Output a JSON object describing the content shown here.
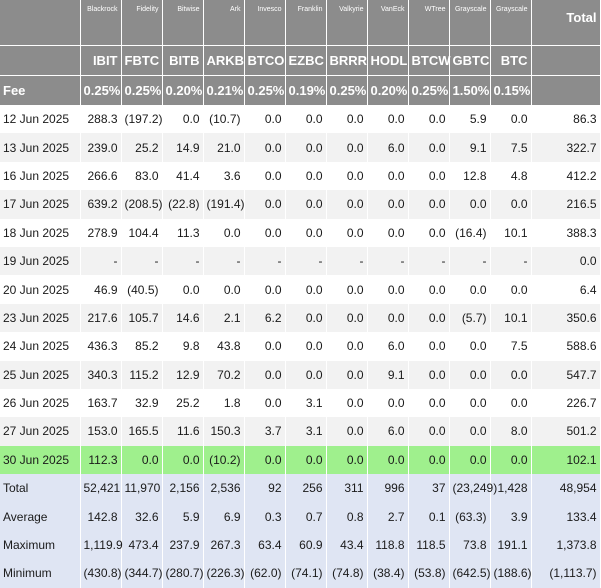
{
  "header": {
    "total_label": "Total",
    "fee_label": "Fee"
  },
  "funds": [
    {
      "issuer": "Blackrock",
      "ticker": "IBIT",
      "fee": "0.25%"
    },
    {
      "issuer": "Fidelity",
      "ticker": "FBTC",
      "fee": "0.25%"
    },
    {
      "issuer": "Bitwise",
      "ticker": "BITB",
      "fee": "0.20%"
    },
    {
      "issuer": "Ark",
      "ticker": "ARKB",
      "fee": "0.21%"
    },
    {
      "issuer": "Invesco",
      "ticker": "BTCO",
      "fee": "0.25%"
    },
    {
      "issuer": "Franklin",
      "ticker": "EZBC",
      "fee": "0.19%"
    },
    {
      "issuer": "Valkyrie",
      "ticker": "BRRR",
      "fee": "0.25%"
    },
    {
      "issuer": "VanEck",
      "ticker": "HODL",
      "fee": "0.20%"
    },
    {
      "issuer": "WTree",
      "ticker": "BTCW",
      "fee": "0.25%"
    },
    {
      "issuer": "Grayscale",
      "ticker": "GBTC",
      "fee": "1.50%"
    },
    {
      "issuer": "Grayscale",
      "ticker": "BTC",
      "fee": "0.15%"
    }
  ],
  "rows": [
    {
      "date": "12 Jun 2025",
      "values": [
        "288.3",
        "(197.2)",
        "0.0",
        "(10.7)",
        "0.0",
        "0.0",
        "0.0",
        "0.0",
        "0.0",
        "5.9",
        "0.0"
      ],
      "total": "86.3"
    },
    {
      "date": "13 Jun 2025",
      "values": [
        "239.0",
        "25.2",
        "14.9",
        "21.0",
        "0.0",
        "0.0",
        "0.0",
        "6.0",
        "0.0",
        "9.1",
        "7.5"
      ],
      "total": "322.7"
    },
    {
      "date": "16 Jun 2025",
      "values": [
        "266.6",
        "83.0",
        "41.4",
        "3.6",
        "0.0",
        "0.0",
        "0.0",
        "0.0",
        "0.0",
        "12.8",
        "4.8"
      ],
      "total": "412.2"
    },
    {
      "date": "17 Jun 2025",
      "values": [
        "639.2",
        "(208.5)",
        "(22.8)",
        "(191.4)",
        "0.0",
        "0.0",
        "0.0",
        "0.0",
        "0.0",
        "0.0",
        "0.0"
      ],
      "total": "216.5"
    },
    {
      "date": "18 Jun 2025",
      "values": [
        "278.9",
        "104.4",
        "11.3",
        "0.0",
        "0.0",
        "0.0",
        "0.0",
        "0.0",
        "0.0",
        "(16.4)",
        "10.1"
      ],
      "total": "388.3"
    },
    {
      "date": "19 Jun 2025",
      "values": [
        "-",
        "-",
        "-",
        "-",
        "-",
        "-",
        "-",
        "-",
        "-",
        "-",
        "-"
      ],
      "total": "0.0"
    },
    {
      "date": "20 Jun 2025",
      "values": [
        "46.9",
        "(40.5)",
        "0.0",
        "0.0",
        "0.0",
        "0.0",
        "0.0",
        "0.0",
        "0.0",
        "0.0",
        "0.0"
      ],
      "total": "6.4"
    },
    {
      "date": "23 Jun 2025",
      "values": [
        "217.6",
        "105.7",
        "14.6",
        "2.1",
        "6.2",
        "0.0",
        "0.0",
        "0.0",
        "0.0",
        "(5.7)",
        "10.1"
      ],
      "total": "350.6"
    },
    {
      "date": "24 Jun 2025",
      "values": [
        "436.3",
        "85.2",
        "9.8",
        "43.8",
        "0.0",
        "0.0",
        "0.0",
        "6.0",
        "0.0",
        "0.0",
        "7.5"
      ],
      "total": "588.6"
    },
    {
      "date": "25 Jun 2025",
      "values": [
        "340.3",
        "115.2",
        "12.9",
        "70.2",
        "0.0",
        "0.0",
        "0.0",
        "9.1",
        "0.0",
        "0.0",
        "0.0"
      ],
      "total": "547.7"
    },
    {
      "date": "26 Jun 2025",
      "values": [
        "163.7",
        "32.9",
        "25.2",
        "1.8",
        "0.0",
        "3.1",
        "0.0",
        "0.0",
        "0.0",
        "0.0",
        "0.0"
      ],
      "total": "226.7"
    },
    {
      "date": "27 Jun 2025",
      "values": [
        "153.0",
        "165.5",
        "11.6",
        "150.3",
        "3.7",
        "3.1",
        "0.0",
        "6.0",
        "0.0",
        "0.0",
        "8.0"
      ],
      "total": "501.2"
    },
    {
      "date": "30 Jun 2025",
      "values": [
        "112.3",
        "0.0",
        "0.0",
        "(10.2)",
        "0.0",
        "0.0",
        "0.0",
        "0.0",
        "0.0",
        "0.0",
        "0.0"
      ],
      "total": "102.1",
      "highlight": true
    }
  ],
  "stats": [
    {
      "label": "Total",
      "values": [
        "52,421",
        "11,970",
        "2,156",
        "2,536",
        "92",
        "256",
        "311",
        "996",
        "37",
        "(23,249)",
        "1,428"
      ],
      "total": "48,954"
    },
    {
      "label": "Average",
      "values": [
        "142.8",
        "32.6",
        "5.9",
        "6.9",
        "0.3",
        "0.7",
        "0.8",
        "2.7",
        "0.1",
        "(63.3)",
        "3.9"
      ],
      "total": "133.4"
    },
    {
      "label": "Maximum",
      "values": [
        "1,119.9",
        "473.4",
        "237.9",
        "267.3",
        "63.4",
        "60.9",
        "43.4",
        "118.8",
        "118.5",
        "73.8",
        "191.1"
      ],
      "total": "1,373.8"
    },
    {
      "label": "Minimum",
      "values": [
        "(430.8)",
        "(344.7)",
        "(280.7)",
        "(226.3)",
        "(62.0)",
        "(74.1)",
        "(74.8)",
        "(38.4)",
        "(53.8)",
        "(642.5)",
        "(188.6)"
      ],
      "total": "(1,113.7)"
    }
  ],
  "colors": {
    "header_bg": "#8c8c8c",
    "alt_row_bg": "#f2f2f2",
    "highlight_bg": "#9ff08d",
    "stats_bg": "#dfe5f3",
    "negative": "#e03b3b"
  }
}
